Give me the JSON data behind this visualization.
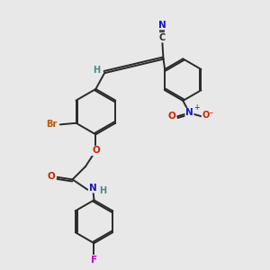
{
  "bg_color": "#e8e8e8",
  "bond_color": "#2a2a2a",
  "atom_colors": {
    "N": "#1414c8",
    "O": "#cc2200",
    "Br": "#bb5500",
    "F": "#cc00bb",
    "H": "#4a8888",
    "C_label": "#2a2a2a"
  }
}
